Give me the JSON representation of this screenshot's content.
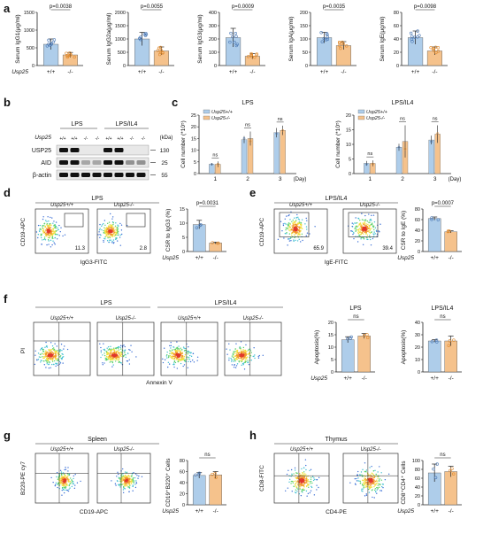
{
  "panels": {
    "a": "a",
    "b": "b",
    "c": "c",
    "d": "d",
    "e": "e",
    "f": "f",
    "g": "g",
    "h": "h"
  },
  "common": {
    "gene": "Usp25",
    "wt": "+/+",
    "ko": "-/-",
    "ns": "ns",
    "wt_super": "Usp25+/+",
    "ko_super": "Usp25-/-"
  },
  "colors": {
    "wt_bar": "#aecdea",
    "ko_bar": "#f5c28c",
    "wt_dot": "#4a78b5",
    "ko_dot": "#e08a2e"
  },
  "panel_a": [
    {
      "ylabel": "Serum IgG1(μg/ml)",
      "p": "p=0.0038",
      "ticks": [
        "0",
        "500",
        "1000",
        "1500"
      ],
      "ymax": 1500,
      "wt": 600,
      "ko": 300,
      "wt_err": 150,
      "ko_err": 70
    },
    {
      "ylabel": "Serum IgG2a(μg/ml)",
      "p": "p=0.0055",
      "ticks": [
        "0",
        "500",
        "1000",
        "1500",
        "2000"
      ],
      "ymax": 2000,
      "wt": 1000,
      "ko": 550,
      "wt_err": 250,
      "ko_err": 150
    },
    {
      "ylabel": "Serum IgG3(μg/ml)",
      "p": "p=0.0009",
      "ticks": [
        "0",
        "100",
        "200",
        "300",
        "400"
      ],
      "ymax": 400,
      "wt": 210,
      "ko": 70,
      "wt_err": 70,
      "ko_err": 20
    },
    {
      "ylabel": "Serum IgA(μg/ml)",
      "p": "p=0.0035",
      "ticks": [
        "0",
        "50",
        "100",
        "150",
        "200"
      ],
      "ymax": 200,
      "wt": 105,
      "ko": 75,
      "wt_err": 20,
      "ko_err": 15
    },
    {
      "ylabel": "Serum IgE(μg/ml)",
      "p": "p=0.0098",
      "ticks": [
        "0",
        "20",
        "40",
        "60",
        "80"
      ],
      "ymax": 80,
      "wt": 42,
      "ko": 22,
      "wt_err": 10,
      "ko_err": 6
    }
  ],
  "panel_b": {
    "lps": "LPS",
    "lps_il4": "LPS/IL4",
    "geno_row": [
      "+/+",
      "+/+",
      "-/-",
      "-/-",
      "+/+",
      "+/+",
      "-/-",
      "-/-"
    ],
    "kda": "(kDa)",
    "rows": [
      {
        "label": "USP25",
        "kda": "130"
      },
      {
        "label": "AID",
        "kda": "25"
      },
      {
        "label": "β-actin",
        "kda": "55"
      }
    ]
  },
  "panel_c": [
    {
      "title": "LPS",
      "ylabel": "Cell number (*10⁵)",
      "ticks": [
        "0",
        "5",
        "10",
        "15",
        "20",
        "25"
      ],
      "ymax": 25,
      "xlabels": [
        "1",
        "2",
        "3"
      ],
      "day": "(Day)",
      "wt": [
        4,
        14.5,
        17.5
      ],
      "ko": [
        4,
        15,
        18.5
      ],
      "wt_err": [
        0.5,
        1.5,
        2
      ],
      "ko_err": [
        1.2,
        3,
        2
      ]
    },
    {
      "title": "LPS/IL4",
      "ylabel": "Cell number (*10⁵)",
      "ticks": [
        "0",
        "5",
        "10",
        "15",
        "20"
      ],
      "ymax": 20,
      "xlabels": [
        "1",
        "2",
        "3"
      ],
      "day": "(Day)",
      "wt": [
        3.5,
        9,
        11.5
      ],
      "ko": [
        3.5,
        11,
        13.5
      ],
      "wt_err": [
        0.8,
        1.2,
        1.5
      ],
      "ko_err": [
        1,
        5.5,
        3
      ]
    }
  ],
  "panel_d": {
    "title": "LPS",
    "xlabel": "IgG3-FITC",
    "ylabel": "CD19-APC",
    "gates": [
      "11.3",
      "2.8"
    ],
    "bar_ylabel": "CSR to IgG3 (%)",
    "p": "p=0.0031",
    "ticks": [
      "0",
      "5",
      "10",
      "15"
    ],
    "ymax": 15,
    "wt": 9.5,
    "ko": 3,
    "wt_err": 1.5,
    "ko_err": 0.3
  },
  "panel_e": {
    "title": "LPS/IL4",
    "xlabel": "IgE-FITC",
    "ylabel": "CD19-APC",
    "gates": [
      "65.9",
      "39.4"
    ],
    "bar_ylabel": "CSR to IgE (%)",
    "p": "p=0.0007",
    "ticks": [
      "0",
      "20",
      "40",
      "60",
      "80"
    ],
    "ymax": 80,
    "wt": 62,
    "ko": 37,
    "wt_err": 3,
    "ko_err": 2
  },
  "panel_f": {
    "lps": "LPS",
    "lps_il4": "LPS/IL4",
    "xlabel": "Annexin V",
    "ylabel": "PI",
    "bars": [
      {
        "title": "LPS",
        "ylabel": "Apoptosis(%)",
        "ticks": [
          "0",
          "5",
          "10",
          "15",
          "20"
        ],
        "ymax": 20,
        "wt": 13,
        "ko": 14.5,
        "wt_err": 1.2,
        "ko_err": 1
      },
      {
        "title": "LPS/IL4",
        "ylabel": "Apoptosis(%)",
        "ticks": [
          "0",
          "10",
          "20",
          "30",
          "40"
        ],
        "ymax": 40,
        "wt": 25,
        "ko": 25,
        "wt_err": 1,
        "ko_err": 4
      }
    ]
  },
  "panel_g": {
    "title": "Spleen",
    "xlabel": "CD19-APC",
    "ylabel": "B220-PE cy7",
    "bar_ylabel": "CD19⁺B220⁺ Cells",
    "ticks": [
      "0",
      "20",
      "40",
      "60",
      "80"
    ],
    "ymax": 80,
    "wt": 53,
    "ko": 54,
    "wt_err": 5,
    "ko_err": 6
  },
  "panel_h": {
    "title": "Thymus",
    "xlabel": "CD4-PE",
    "ylabel": "CD8-FITC",
    "bar_ylabel": "CD8⁺CD4⁺ Cells",
    "ticks": [
      "0",
      "20",
      "40",
      "60",
      "80",
      "100"
    ],
    "ymax": 100,
    "wt": 72,
    "ko": 75,
    "wt_err": 20,
    "ko_err": 12
  }
}
